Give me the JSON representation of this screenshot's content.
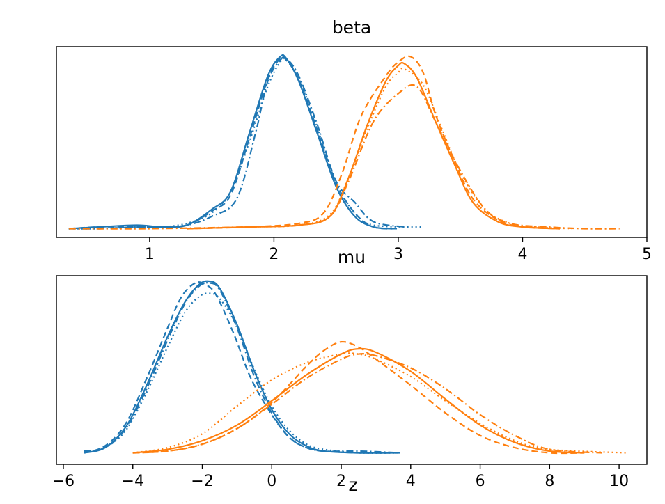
{
  "colors": {
    "series_a": "#1f77b4",
    "series_b": "#ff7f0e"
  },
  "chart_data": [
    {
      "type": "line",
      "title": "beta",
      "xlabel": "",
      "ylabel": "",
      "xlim": [
        0.25,
        5.0
      ],
      "ylim": [
        0,
        1
      ],
      "xticks": [
        1,
        2,
        3,
        4,
        5
      ],
      "yticks": [],
      "grid": false,
      "legend": "none",
      "line_styles": [
        "solid",
        "dashed",
        "dashdot",
        "dotted"
      ],
      "series": [
        {
          "color": "#1f77b4",
          "chains": [
            {
              "style": "solid",
              "x": [
                0.35,
                0.6,
                0.9,
                1.1,
                1.3,
                1.5,
                1.65,
                1.8,
                1.95,
                2.05,
                2.1,
                2.2,
                2.35,
                2.5,
                2.65,
                2.8,
                2.95
              ],
              "y": [
                0.01,
                0.02,
                0.03,
                0.02,
                0.03,
                0.12,
                0.22,
                0.55,
                0.88,
                0.99,
                0.98,
                0.85,
                0.55,
                0.25,
                0.08,
                0.02,
                0.01
              ]
            },
            {
              "style": "dashed",
              "x": [
                0.35,
                0.6,
                0.9,
                1.1,
                1.3,
                1.5,
                1.65,
                1.8,
                1.95,
                2.05,
                2.1,
                2.2,
                2.35,
                2.5,
                2.65,
                2.8,
                3.0
              ],
              "y": [
                0.01,
                0.02,
                0.02,
                0.02,
                0.03,
                0.11,
                0.2,
                0.52,
                0.86,
                0.98,
                0.97,
                0.86,
                0.57,
                0.27,
                0.1,
                0.02,
                0.01
              ]
            },
            {
              "style": "dashdot",
              "x": [
                0.35,
                0.6,
                0.9,
                1.1,
                1.3,
                1.5,
                1.7,
                1.85,
                1.95,
                2.05,
                2.1,
                2.2,
                2.35,
                2.5,
                2.65,
                2.8,
                3.05
              ],
              "y": [
                0.01,
                0.01,
                0.02,
                0.02,
                0.03,
                0.08,
                0.18,
                0.55,
                0.85,
                0.97,
                0.98,
                0.88,
                0.6,
                0.28,
                0.16,
                0.05,
                0.02
              ]
            },
            {
              "style": "dotted",
              "x": [
                0.35,
                0.6,
                0.9,
                1.1,
                1.3,
                1.5,
                1.65,
                1.8,
                1.95,
                2.05,
                2.1,
                2.2,
                2.35,
                2.5,
                2.65,
                2.8,
                3.2
              ],
              "y": [
                0.01,
                0.01,
                0.02,
                0.02,
                0.04,
                0.1,
                0.22,
                0.5,
                0.82,
                0.96,
                0.97,
                0.87,
                0.58,
                0.27,
                0.1,
                0.03,
                0.02
              ]
            }
          ]
        },
        {
          "color": "#ff7f0e",
          "chains": [
            {
              "style": "solid",
              "x": [
                1.3,
                1.8,
                2.2,
                2.45,
                2.6,
                2.75,
                2.9,
                3.0,
                3.05,
                3.15,
                3.3,
                3.45,
                3.6,
                3.8,
                4.0,
                4.3
              ],
              "y": [
                0.01,
                0.02,
                0.03,
                0.08,
                0.3,
                0.6,
                0.85,
                0.94,
                0.95,
                0.87,
                0.62,
                0.38,
                0.16,
                0.05,
                0.02,
                0.01
              ]
            },
            {
              "style": "dashed",
              "x": [
                1.3,
                1.8,
                2.2,
                2.4,
                2.55,
                2.7,
                2.9,
                3.0,
                3.1,
                3.2,
                3.3,
                3.45,
                3.6,
                3.8,
                4.0,
                4.3
              ],
              "y": [
                0.01,
                0.02,
                0.04,
                0.1,
                0.33,
                0.65,
                0.88,
                0.96,
                0.99,
                0.9,
                0.66,
                0.4,
                0.18,
                0.06,
                0.02,
                0.01
              ]
            },
            {
              "style": "dashdot",
              "x": [
                0.35,
                1.0,
                1.8,
                2.2,
                2.45,
                2.6,
                2.8,
                3.0,
                3.15,
                3.3,
                3.5,
                3.7,
                3.9,
                4.2,
                4.5,
                4.78
              ],
              "y": [
                0.01,
                0.01,
                0.02,
                0.03,
                0.08,
                0.28,
                0.62,
                0.78,
                0.82,
                0.62,
                0.34,
                0.12,
                0.04,
                0.02,
                0.01,
                0.01
              ]
            },
            {
              "style": "dotted",
              "x": [
                1.3,
                1.8,
                2.2,
                2.45,
                2.6,
                2.75,
                2.9,
                3.0,
                3.05,
                3.2,
                3.35,
                3.5,
                3.7,
                3.9,
                4.1,
                4.4
              ],
              "y": [
                0.01,
                0.02,
                0.03,
                0.09,
                0.3,
                0.58,
                0.82,
                0.9,
                0.92,
                0.83,
                0.58,
                0.33,
                0.12,
                0.04,
                0.02,
                0.01
              ]
            }
          ]
        }
      ]
    },
    {
      "type": "line",
      "title": "mu",
      "xlabel": "",
      "ylabel": "",
      "xlim": [
        -6.2,
        10.8
      ],
      "ylim": [
        0,
        1
      ],
      "xticks": [
        -6,
        -4,
        -2,
        0,
        2,
        4,
        6,
        8,
        10
      ],
      "yticks": [],
      "grid": false,
      "legend": "none",
      "line_styles": [
        "solid",
        "dashed",
        "dashdot",
        "dotted"
      ],
      "series": [
        {
          "color": "#1f77b4",
          "chains": [
            {
              "style": "solid",
              "x": [
                -5.4,
                -4.8,
                -4.2,
                -3.6,
                -3.0,
                -2.5,
                -2.1,
                -1.8,
                -1.5,
                -1.0,
                -0.5,
                0.0,
                0.5,
                1.0,
                1.5,
                2.5,
                3.7
              ],
              "y": [
                0.01,
                0.04,
                0.16,
                0.4,
                0.68,
                0.88,
                0.98,
                1.0,
                0.96,
                0.75,
                0.48,
                0.26,
                0.12,
                0.05,
                0.02,
                0.01,
                0.01
              ]
            },
            {
              "style": "dashed",
              "x": [
                -5.4,
                -4.8,
                -4.2,
                -3.6,
                -3.0,
                -2.6,
                -2.2,
                -1.9,
                -1.6,
                -1.1,
                -0.6,
                0.0,
                0.5,
                1.0,
                1.5,
                2.5,
                3.6
              ],
              "y": [
                0.01,
                0.05,
                0.18,
                0.44,
                0.73,
                0.91,
                0.99,
                0.98,
                0.92,
                0.7,
                0.44,
                0.23,
                0.1,
                0.04,
                0.02,
                0.01,
                0.01
              ]
            },
            {
              "style": "dashdot",
              "x": [
                -5.4,
                -4.8,
                -4.2,
                -3.6,
                -3.0,
                -2.5,
                -2.1,
                -1.8,
                -1.5,
                -1.0,
                -0.5,
                0.0,
                0.5,
                1.0,
                1.5,
                2.5,
                3.7
              ],
              "y": [
                0.02,
                0.04,
                0.15,
                0.38,
                0.66,
                0.87,
                0.97,
                0.99,
                0.95,
                0.73,
                0.45,
                0.24,
                0.1,
                0.04,
                0.02,
                0.02,
                0.01
              ]
            },
            {
              "style": "dotted",
              "x": [
                -5.4,
                -4.8,
                -4.2,
                -3.6,
                -3.0,
                -2.5,
                -2.1,
                -1.8,
                -1.5,
                -1.0,
                -0.5,
                0.0,
                0.5,
                1.0,
                1.5,
                2.5,
                3.7
              ],
              "y": [
                0.01,
                0.04,
                0.14,
                0.36,
                0.62,
                0.82,
                0.91,
                0.93,
                0.9,
                0.74,
                0.49,
                0.28,
                0.14,
                0.06,
                0.03,
                0.01,
                0.01
              ]
            }
          ]
        },
        {
          "color": "#ff7f0e",
          "chains": [
            {
              "style": "solid",
              "x": [
                -4.0,
                -3.0,
                -2.0,
                -1.0,
                0.0,
                1.0,
                2.0,
                2.5,
                3.0,
                4.0,
                5.0,
                6.0,
                7.0,
                8.0,
                9.0
              ],
              "y": [
                0.01,
                0.03,
                0.08,
                0.17,
                0.31,
                0.46,
                0.58,
                0.61,
                0.59,
                0.48,
                0.32,
                0.17,
                0.07,
                0.02,
                0.01
              ]
            },
            {
              "style": "dashed",
              "x": [
                -4.0,
                -3.0,
                -2.0,
                -1.0,
                0.0,
                1.0,
                1.5,
                2.0,
                2.5,
                3.0,
                4.0,
                5.0,
                6.0,
                7.0,
                8.0,
                9.0
              ],
              "y": [
                0.01,
                0.02,
                0.06,
                0.15,
                0.3,
                0.51,
                0.6,
                0.65,
                0.62,
                0.55,
                0.4,
                0.24,
                0.11,
                0.04,
                0.01,
                0.01
              ]
            },
            {
              "style": "dashdot",
              "x": [
                -4.0,
                -3.0,
                -2.0,
                -1.0,
                0.0,
                1.0,
                2.0,
                2.5,
                3.0,
                4.0,
                5.0,
                6.0,
                7.0,
                8.0,
                9.5
              ],
              "y": [
                0.01,
                0.02,
                0.06,
                0.15,
                0.29,
                0.44,
                0.55,
                0.58,
                0.57,
                0.5,
                0.38,
                0.23,
                0.11,
                0.03,
                0.01
              ]
            },
            {
              "style": "dotted",
              "x": [
                -4.0,
                -3.0,
                -2.0,
                -1.0,
                0.0,
                1.0,
                2.0,
                2.5,
                3.0,
                4.0,
                5.0,
                6.0,
                7.0,
                8.0,
                10.2
              ],
              "y": [
                0.01,
                0.04,
                0.12,
                0.28,
                0.43,
                0.53,
                0.58,
                0.58,
                0.55,
                0.45,
                0.31,
                0.18,
                0.08,
                0.03,
                0.01
              ]
            }
          ]
        }
      ]
    }
  ],
  "overlay_label": {
    "text": "z"
  }
}
